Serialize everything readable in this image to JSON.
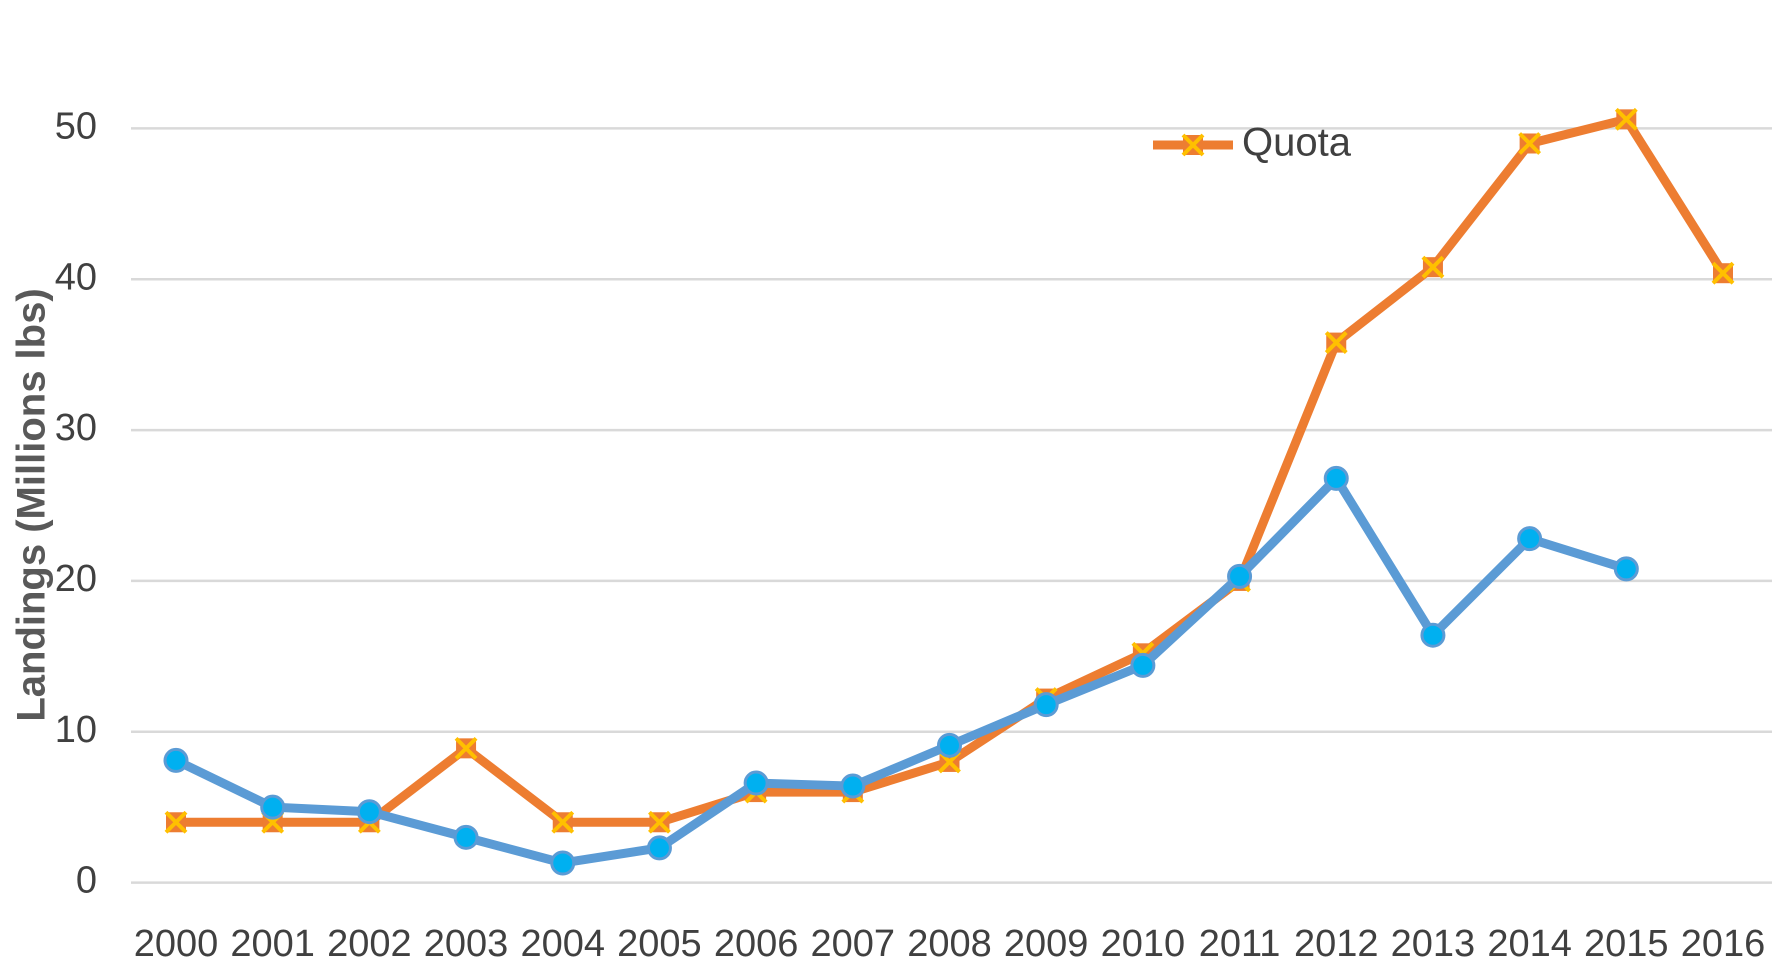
{
  "chart_data": {
    "type": "line",
    "y_label": "Landings (Millions lbs)",
    "categories": [
      "2000",
      "2001",
      "2002",
      "2003",
      "2004",
      "2005",
      "2006",
      "2007",
      "2008",
      "2009",
      "2010",
      "2011",
      "2012",
      "2013",
      "2014",
      "2015",
      "2016"
    ],
    "series": [
      {
        "name": "Quota",
        "color": "#ed7d31",
        "marker": "x",
        "marker_color": "#ffc000",
        "values": [
          4,
          4,
          4,
          8.9,
          4,
          4,
          6,
          6,
          8,
          12.2,
          15.2,
          20,
          35.8,
          40.8,
          49,
          50.6,
          40.4
        ]
      },
      {
        "color": "#5b9bd5",
        "marker": "circle",
        "marker_color": "#00b0f0",
        "values": [
          8.1,
          5,
          4.7,
          3,
          1.3,
          2.3,
          6.6,
          6.4,
          9.1,
          11.8,
          14.4,
          20.3,
          26.8,
          16.4,
          22.8,
          20.8,
          null
        ]
      }
    ],
    "ylim": [
      0,
      50
    ],
    "yticks": [
      0,
      10,
      20,
      30,
      40,
      50
    ],
    "grid": true,
    "legend": "top-right"
  }
}
